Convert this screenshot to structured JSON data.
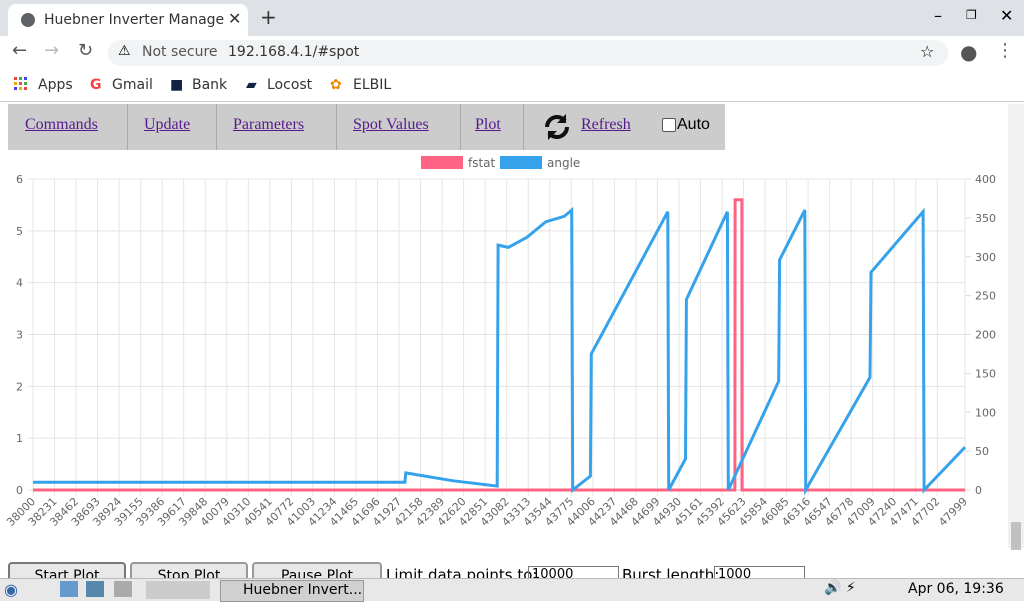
{
  "browser": {
    "tab_title": "Huebner Inverter Manage",
    "security": "Not secure",
    "url": "192.168.4.1/#spot",
    "bookmarks": [
      "Apps",
      "Gmail",
      "Bank",
      "Locost",
      "ELBIL"
    ]
  },
  "nav": {
    "links": [
      "Commands",
      "Update",
      "Parameters",
      "Spot Values",
      "Plot",
      "Refresh"
    ],
    "auto": "Auto"
  },
  "controls": {
    "buttons": [
      "Start Plot",
      "Stop Plot",
      "Pause Plot"
    ],
    "limit_label": "Limit data points to:",
    "limit_value": "10000",
    "burst_label": "Burst length:",
    "burst_value": "1000"
  },
  "taskbar": {
    "window": "Huebner Invert...",
    "clock": "Apr 06, 19:36"
  },
  "chart_data": {
    "type": "line",
    "xlim": [
      38000,
      47999
    ],
    "xticks": [
      38000,
      38231,
      38462,
      38693,
      38924,
      39155,
      39386,
      39617,
      39848,
      40079,
      40310,
      40541,
      40772,
      41003,
      41234,
      41465,
      41696,
      41927,
      42158,
      42389,
      42620,
      42851,
      43082,
      43313,
      43544,
      43775,
      44006,
      44237,
      44468,
      44699,
      44930,
      45161,
      45392,
      45623,
      45854,
      46085,
      46316,
      46547,
      46778,
      47009,
      47240,
      47471,
      47702,
      47999
    ],
    "ylim": [
      0,
      6
    ],
    "yticks": [
      0,
      1,
      2,
      3,
      4,
      5,
      6
    ],
    "y2lim": [
      0,
      400
    ],
    "y2ticks": [
      0,
      50,
      100,
      150,
      200,
      250,
      300,
      350,
      400
    ],
    "grid": true,
    "series": [
      {
        "name": "fstat",
        "color": "#ff6384",
        "x": [
          38000,
          45530,
          45532,
          45605,
          45607,
          47999
        ],
        "values": [
          0,
          0,
          5.6,
          5.6,
          0,
          0
        ]
      },
      {
        "name": "angle",
        "color": "#36a2eb",
        "axis": "y2",
        "x": [
          38000,
          41990,
          42000,
          42500,
          42980,
          42990,
          43100,
          43300,
          43500,
          43700,
          43780,
          43790,
          43980,
          43990,
          44810,
          44820,
          45000,
          45010,
          45450,
          45460,
          46000,
          46010,
          46280,
          46290,
          46980,
          46990,
          47550,
          47560,
          47999
        ],
        "values": [
          10,
          10,
          22,
          12,
          5,
          315,
          312,
          325,
          345,
          352,
          360,
          0,
          18,
          175,
          358,
          0,
          40,
          245,
          358,
          0,
          140,
          296,
          360,
          0,
          145,
          280,
          358,
          0,
          55
        ]
      }
    ]
  }
}
